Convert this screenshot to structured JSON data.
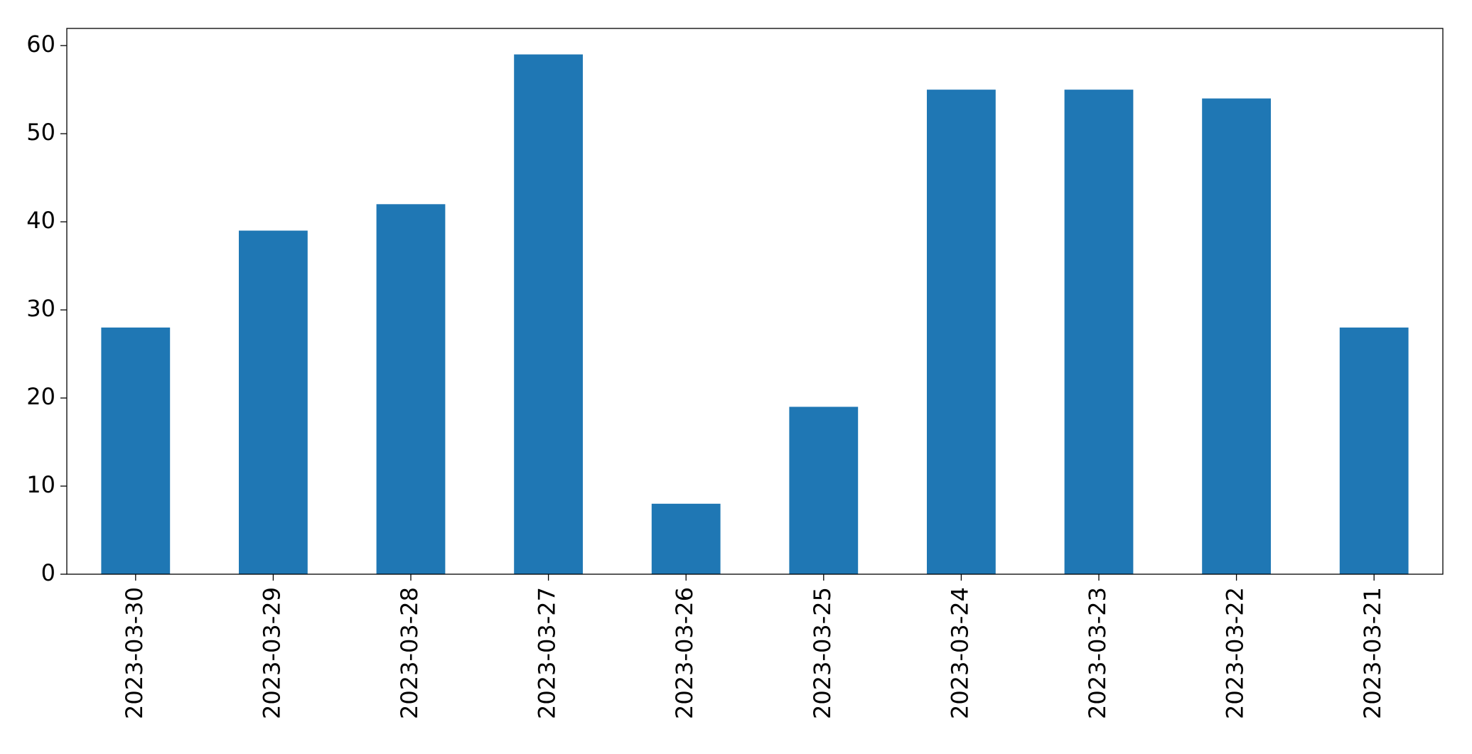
{
  "chart_data": {
    "type": "bar",
    "categories": [
      "2023-03-30",
      "2023-03-29",
      "2023-03-28",
      "2023-03-27",
      "2023-03-26",
      "2023-03-25",
      "2023-03-24",
      "2023-03-23",
      "2023-03-22",
      "2023-03-21"
    ],
    "values": [
      28,
      39,
      42,
      59,
      8,
      19,
      55,
      55,
      54,
      28
    ],
    "color": "#1f77b4",
    "ylim": [
      0,
      61.95
    ],
    "yticks": [
      0,
      10,
      20,
      30,
      40,
      50,
      60
    ],
    "grid": false
  }
}
